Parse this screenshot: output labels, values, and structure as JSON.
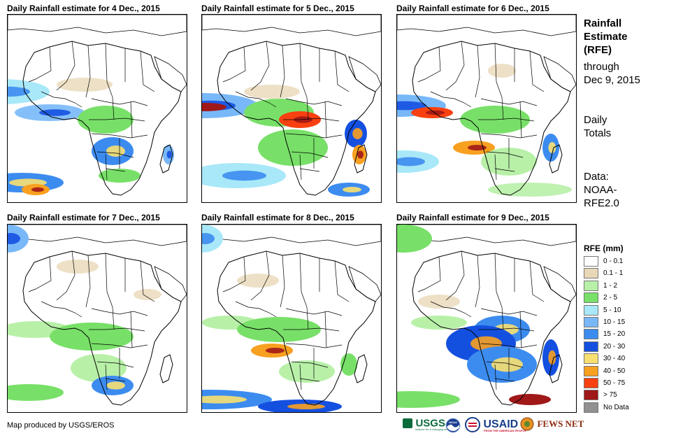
{
  "panels": [
    {
      "title": "Daily Rainfall estimate for 4 Dec., 2015"
    },
    {
      "title": "Daily Rainfall estimate for 5 Dec., 2015"
    },
    {
      "title": "Daily Rainfall estimate for 6 Dec., 2015"
    },
    {
      "title": "Daily Rainfall estimate for 7 Dec., 2015"
    },
    {
      "title": "Daily Rainfall estimate for 8 Dec., 2015"
    },
    {
      "title": "Daily Rainfall estimate for 9 Dec., 2015"
    }
  ],
  "side": {
    "heading_lines": [
      "Rainfall",
      "Estimate",
      "(RFE)"
    ],
    "through_lines": [
      "through",
      "Dec 9, 2015"
    ],
    "totals_lines": [
      "Daily",
      "Totals"
    ],
    "data_lines": [
      "Data:",
      "NOAA-",
      "RFE2.0"
    ]
  },
  "legend": {
    "title": "RFE (mm)",
    "items": [
      {
        "label": "0 - 0.1",
        "color": "#ffffff"
      },
      {
        "label": "0.1 - 1",
        "color": "#e8d8b8"
      },
      {
        "label": "1 - 2",
        "color": "#b8f0a8"
      },
      {
        "label": "2 - 5",
        "color": "#78e068"
      },
      {
        "label": "5 - 10",
        "color": "#a8e8f8"
      },
      {
        "label": "10 - 15",
        "color": "#78b8f8"
      },
      {
        "label": "15 - 20",
        "color": "#3c8cf0"
      },
      {
        "label": "20 - 30",
        "color": "#1450e0"
      },
      {
        "label": "30 - 40",
        "color": "#f8e070"
      },
      {
        "label": "40 - 50",
        "color": "#f8a020"
      },
      {
        "label": "50 - 75",
        "color": "#f84010"
      },
      {
        "label": "> 75",
        "color": "#a01818"
      },
      {
        "label": "No Data",
        "color": "#909090"
      }
    ]
  },
  "footer": {
    "credit": "Map produced by USGS/EROS"
  },
  "logos": {
    "usgs": "USGS",
    "usgs_tagline": "science for a changing world",
    "noaa": "NOAA",
    "usaid": "USAID",
    "usaid_tagline": "FROM THE AMERICAN PEOPLE",
    "fews": "FEWS NET"
  },
  "colors": {
    "border": "#000000",
    "coast": "#000000"
  }
}
